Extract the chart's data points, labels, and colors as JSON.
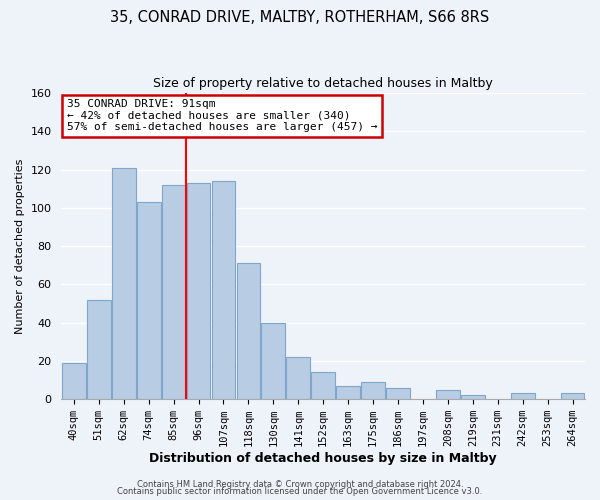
{
  "title": "35, CONRAD DRIVE, MALTBY, ROTHERHAM, S66 8RS",
  "subtitle": "Size of property relative to detached houses in Maltby",
  "xlabel": "Distribution of detached houses by size in Maltby",
  "ylabel": "Number of detached properties",
  "bar_labels": [
    "40sqm",
    "51sqm",
    "62sqm",
    "74sqm",
    "85sqm",
    "96sqm",
    "107sqm",
    "118sqm",
    "130sqm",
    "141sqm",
    "152sqm",
    "163sqm",
    "175sqm",
    "186sqm",
    "197sqm",
    "208sqm",
    "219sqm",
    "231sqm",
    "242sqm",
    "253sqm",
    "264sqm"
  ],
  "bar_values": [
    19,
    52,
    121,
    103,
    112,
    113,
    114,
    71,
    40,
    22,
    14,
    7,
    9,
    6,
    0,
    5,
    2,
    0,
    3,
    0,
    3
  ],
  "bar_color": "#b8cce4",
  "bar_edge_color": "#7fa7cc",
  "vline_x_idx": 5,
  "vline_color": "red",
  "ylim": [
    0,
    160
  ],
  "yticks": [
    0,
    20,
    40,
    60,
    80,
    100,
    120,
    140,
    160
  ],
  "annotation_title": "35 CONRAD DRIVE: 91sqm",
  "annotation_line1": "← 42% of detached houses are smaller (340)",
  "annotation_line2": "57% of semi-detached houses are larger (457) →",
  "annotation_box_color": "#ffffff",
  "annotation_box_edge": "#cc0000",
  "footer1": "Contains HM Land Registry data © Crown copyright and database right 2024.",
  "footer2": "Contains public sector information licensed under the Open Government Licence v3.0.",
  "background_color": "#eef2f9",
  "grid_color": "#ffffff"
}
